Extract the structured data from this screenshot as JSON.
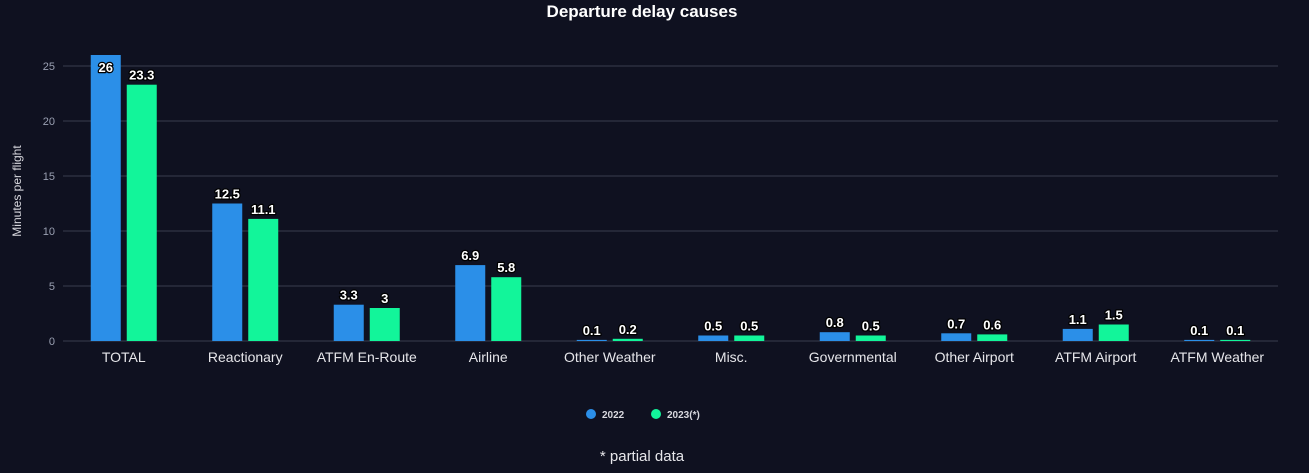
{
  "chart_data": {
    "type": "bar",
    "title": "Departure delay causes",
    "ylabel": "Minutes per flight",
    "xlabel": "",
    "ylim": [
      0,
      25
    ],
    "yticks": [
      0,
      5,
      10,
      15,
      20,
      25
    ],
    "grid": true,
    "legend_position": "bottom",
    "categories": [
      "TOTAL",
      "Reactionary",
      "ATFM En-Route",
      "Airline",
      "Other Weather",
      "Misc.",
      "Governmental",
      "Other Airport",
      "ATFM Airport",
      "ATFM Weather"
    ],
    "series": [
      {
        "name": "2022",
        "color": "#2b8fe8",
        "values": [
          26,
          12.5,
          3.3,
          6.9,
          0.1,
          0.5,
          0.8,
          0.7,
          1.1,
          0.1
        ]
      },
      {
        "name": "2023(*)",
        "color": "#12f59a",
        "values": [
          23.3,
          11.1,
          3,
          5.8,
          0.2,
          0.5,
          0.5,
          0.6,
          1.5,
          0.1
        ]
      }
    ]
  },
  "footnote": "* partial data"
}
